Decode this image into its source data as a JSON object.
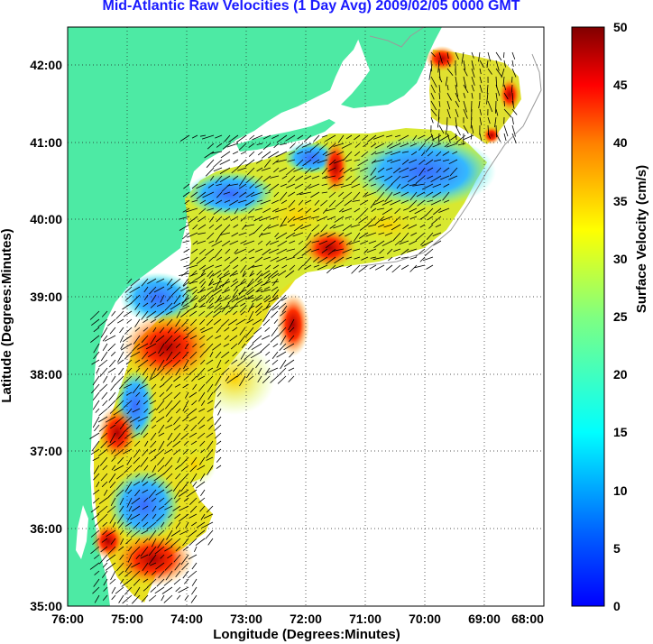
{
  "title": "Mid-Atlantic Raw Velocities (1 Day Avg) 2009/02/05 0000 GMT",
  "map": {
    "xlabel": "Longitude (Degrees:Minutes)",
    "ylabel": "Latitude (Degrees:Minutes)",
    "x_ticks": [
      "76:00",
      "75:00",
      "74:00",
      "73:00",
      "72:00",
      "71:00",
      "70:00",
      "69:00",
      "68:00"
    ],
    "y_ticks": [
      "42:00",
      "41:00",
      "40:00",
      "39:00",
      "38:00",
      "37:00",
      "36:00",
      "35:00"
    ],
    "x_range": [
      -76,
      -68
    ],
    "y_range": [
      35,
      42.5
    ],
    "grid": "dotted",
    "colors": {
      "land": "#4deaa4",
      "ocean": "#ffffff",
      "coast": "#9a9a9a"
    }
  },
  "colorbar": {
    "label": "Surface Velocity (cm/s)",
    "ticks": [
      "50",
      "45",
      "40",
      "35",
      "30",
      "25",
      "20",
      "15",
      "10",
      "5",
      "0"
    ],
    "range": [
      0,
      50
    ],
    "colormap": "jet"
  }
}
